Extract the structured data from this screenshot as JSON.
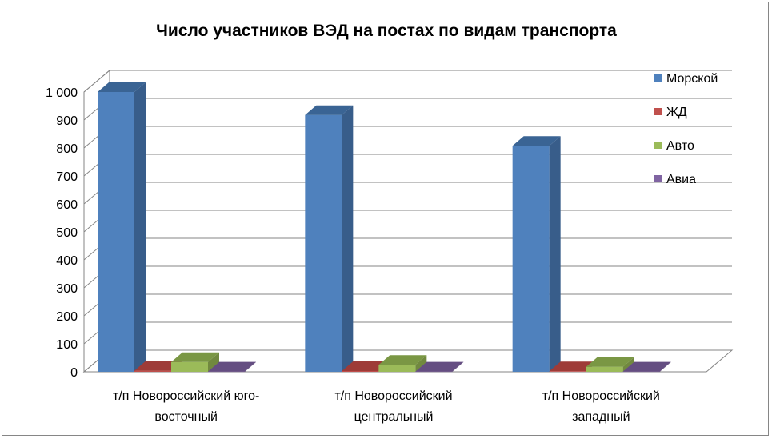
{
  "chart_data": {
    "type": "bar",
    "title": "Число участников ВЭД на постах по видам транспорта",
    "categories": [
      [
        "т/п Новороссийский юго-",
        "восточный"
      ],
      [
        "т/п Новороссийский",
        "центральный"
      ],
      [
        "т/п Новороссийский",
        "западный"
      ]
    ],
    "series": [
      {
        "name": "Морской",
        "values": [
          1000,
          918,
          808
        ],
        "color": "#4F81BD",
        "side": "#385D8A",
        "top": "#3A6494"
      },
      {
        "name": "ЖД",
        "values": [
          4,
          3,
          2
        ],
        "color": "#C0504D",
        "side": "#8C3836",
        "top": "#9E3B38"
      },
      {
        "name": "Авто",
        "values": [
          35,
          25,
          18
        ],
        "color": "#9BBB59",
        "side": "#71893F",
        "top": "#7A9744"
      },
      {
        "name": "Авиа",
        "values": [
          1,
          1,
          1
        ],
        "color": "#8064A2",
        "side": "#5C4776",
        "top": "#654E82"
      }
    ],
    "ylim": [
      0,
      1000
    ],
    "yticks": [
      "0",
      "100",
      "200",
      "300",
      "400",
      "500",
      "600",
      "700",
      "800",
      "900",
      "1 000"
    ],
    "grid": true,
    "legend": "right",
    "xlabel": "",
    "ylabel": ""
  }
}
